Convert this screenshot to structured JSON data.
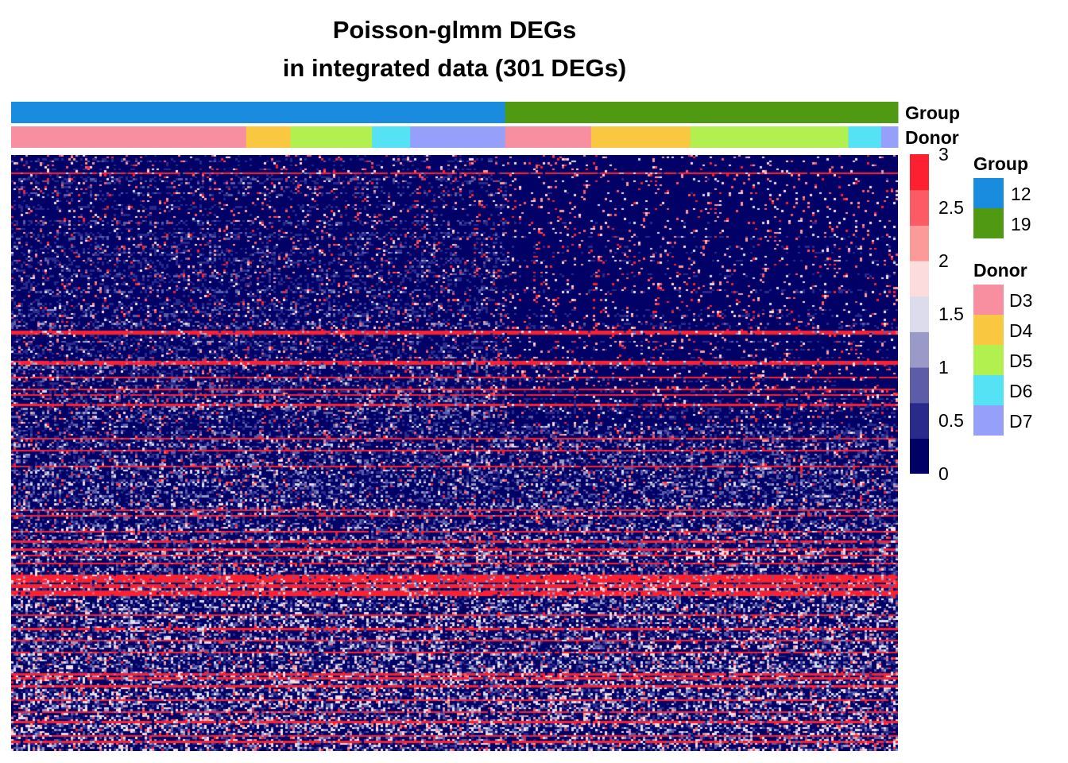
{
  "chart_data": {
    "type": "heatmap",
    "title_lines": [
      "Poisson-glmm DEGs",
      "in integrated data (301 DEGs)"
    ],
    "n_rows": 301,
    "color_scale": {
      "min": 0,
      "max": 3,
      "breaks": [
        0,
        0.5,
        1,
        1.5,
        2,
        2.5,
        3
      ],
      "tick_labels": [
        "0",
        "0.5",
        "1",
        "1.5",
        "2",
        "2.5",
        "3"
      ],
      "colors": [
        "#000066",
        "#2a2a8c",
        "#5c5ca8",
        "#9a9ac8",
        "#dcdcec",
        "#fcdcdc",
        "#fc9a9a",
        "#fc5a64",
        "#fc2030"
      ]
    },
    "annotations": [
      {
        "name": "Group",
        "segments": [
          {
            "label": "12",
            "share": 0.557
          },
          {
            "label": "19",
            "share": 0.443
          }
        ]
      },
      {
        "name": "Donor",
        "segments": [
          {
            "label": "D3",
            "share": 0.265
          },
          {
            "label": "D4",
            "share": 0.05
          },
          {
            "label": "D5",
            "share": 0.092
          },
          {
            "label": "D6",
            "share": 0.043
          },
          {
            "label": "D7",
            "share": 0.107
          },
          {
            "label": "D3",
            "share": 0.097
          },
          {
            "label": "D4",
            "share": 0.112
          },
          {
            "label": "D5",
            "share": 0.178
          },
          {
            "label": "D6",
            "share": 0.037
          },
          {
            "label": "D7",
            "share": 0.019
          }
        ]
      }
    ],
    "legends": [
      {
        "title": "Group",
        "items": [
          {
            "label": "12",
            "color": "#1a8ce0"
          },
          {
            "label": "19",
            "color": "#4f9a12"
          }
        ]
      },
      {
        "title": "Donor",
        "items": [
          {
            "label": "D3",
            "color": "#f78fa0"
          },
          {
            "label": "D4",
            "color": "#f9c840"
          },
          {
            "label": "D5",
            "color": "#b2f050"
          },
          {
            "label": "D6",
            "color": "#55e2f4"
          },
          {
            "label": "D7",
            "color": "#96a0fa"
          }
        ]
      }
    ]
  }
}
